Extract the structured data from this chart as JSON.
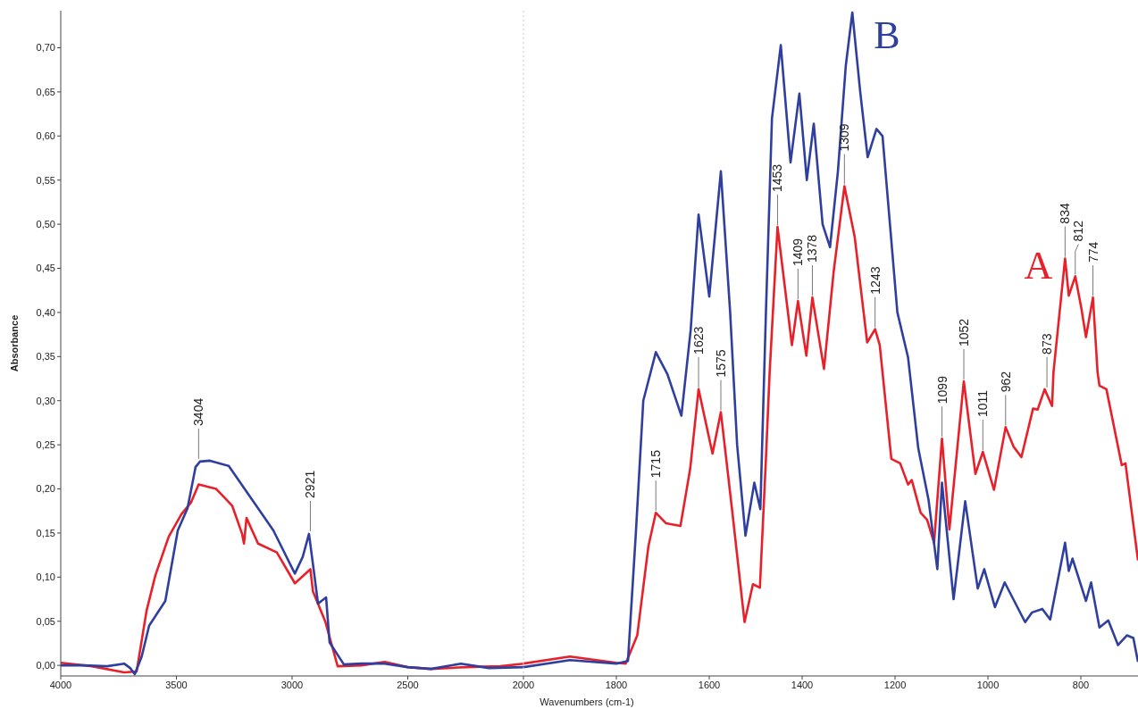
{
  "chart_data": [
    {
      "type": "line",
      "ylabel": "Absorbance",
      "tick_labels": "xy",
      "xlim": [
        4000,
        2000
      ],
      "xticks": [
        4000,
        3500,
        3000,
        2500,
        2000
      ],
      "ylim": [
        -0.012,
        0.742
      ],
      "yticks": [
        {
          "value": 0,
          "label": "0,00"
        },
        {
          "value": 0.05,
          "label": "0,05"
        },
        {
          "value": 0.1,
          "label": "0,10"
        },
        {
          "value": 0.15,
          "label": "0,15"
        },
        {
          "value": 0.2,
          "label": "0,20"
        },
        {
          "value": 0.25,
          "label": "0,25"
        },
        {
          "value": 0.3,
          "label": "0,30"
        },
        {
          "value": 0.35,
          "label": "0,35"
        },
        {
          "value": 0.4,
          "label": "0,40"
        },
        {
          "value": 0.45,
          "label": "0,45"
        },
        {
          "value": 0.5,
          "label": "0,50"
        },
        {
          "value": 0.55,
          "label": "0,55"
        },
        {
          "value": 0.6,
          "label": "0,60"
        },
        {
          "value": 0.65,
          "label": "0,65"
        },
        {
          "value": 0.7,
          "label": "0,70"
        }
      ],
      "series": [
        {
          "color": "#e8202a",
          "x": [
            4000,
            3865,
            3726,
            3672,
            3629,
            3591,
            3533,
            3479,
            3436,
            3404,
            3328,
            3259,
            3216,
            3208,
            3197,
            3147,
            3066,
            2988,
            2921,
            2910,
            2857,
            2803,
            2700,
            2600,
            2500,
            2400,
            2250,
            2100,
            2000
          ],
          "values": [
            0.003,
            -0.001,
            -0.008,
            -0.007,
            0.062,
            0.102,
            0.146,
            0.171,
            0.185,
            0.205,
            0.2,
            0.181,
            0.149,
            0.138,
            0.167,
            0.138,
            0.128,
            0.093,
            0.109,
            0.084,
            0.05,
            -0.001,
            0.0,
            0.004,
            -0.002,
            -0.004,
            -0.002,
            -0.001,
            0.002
          ]
        },
        {
          "color": "#2f3f9e",
          "x": [
            4000,
            3900,
            3800,
            3726,
            3700,
            3680,
            3650,
            3618,
            3548,
            3494,
            3452,
            3417,
            3398,
            3355,
            3274,
            3147,
            3081,
            2988,
            2954,
            2927,
            2907,
            2888,
            2853,
            2838,
            2776,
            2700,
            2600,
            2500,
            2400,
            2270,
            2150,
            2000
          ],
          "values": [
            0.0,
            0.0,
            -0.001,
            0.002,
            -0.003,
            -0.01,
            0.01,
            0.045,
            0.073,
            0.153,
            0.178,
            0.225,
            0.231,
            0.232,
            0.226,
            0.178,
            0.153,
            0.104,
            0.123,
            0.149,
            0.109,
            0.07,
            0.077,
            0.026,
            0.001,
            0.002,
            0.002,
            -0.002,
            -0.004,
            0.002,
            -0.003,
            -0.002
          ]
        }
      ],
      "annotations": [
        {
          "text": "3404",
          "x": 3404,
          "y": 0.232
        },
        {
          "text": "2921",
          "x": 2921,
          "y": 0.15
        }
      ]
    },
    {
      "type": "line",
      "xlabel": "Wavenumbers (cm-1)",
      "tick_labels": "x",
      "xlim": [
        2000,
        677
      ],
      "xticks": [
        1800,
        1600,
        1400,
        1200,
        1000,
        800
      ],
      "ylim": [
        -0.012,
        0.742
      ],
      "ref_lines": [
        {
          "axis": "x",
          "value": 2000,
          "color": "#c8c8c8",
          "line_style": "dotted"
        }
      ],
      "series": [
        {
          "name": "A",
          "color": "#e8202a",
          "x": [
            2000,
            1900,
            1800,
            1780,
            1755,
            1731,
            1715,
            1693,
            1662,
            1641,
            1623,
            1593,
            1575,
            1551,
            1524,
            1506,
            1491,
            1478,
            1470,
            1453,
            1422,
            1409,
            1391,
            1378,
            1353,
            1332,
            1309,
            1287,
            1260,
            1243,
            1233,
            1208,
            1189,
            1172,
            1164,
            1145,
            1131,
            1116,
            1099,
            1083,
            1052,
            1027,
            1011,
            987,
            962,
            945,
            928,
            903,
            893,
            878,
            862,
            859,
            834,
            826,
            812,
            799,
            789,
            774,
            764,
            760,
            745,
            712,
            704,
            677
          ],
          "values": [
            0.002,
            0.01,
            0.003,
            0.002,
            0.034,
            0.135,
            0.173,
            0.161,
            0.158,
            0.223,
            0.313,
            0.24,
            0.287,
            0.177,
            0.049,
            0.092,
            0.088,
            0.234,
            0.332,
            0.497,
            0.363,
            0.413,
            0.351,
            0.417,
            0.336,
            0.447,
            0.543,
            0.486,
            0.366,
            0.381,
            0.363,
            0.234,
            0.229,
            0.205,
            0.21,
            0.173,
            0.165,
            0.139,
            0.257,
            0.154,
            0.322,
            0.217,
            0.242,
            0.199,
            0.27,
            0.248,
            0.236,
            0.291,
            0.29,
            0.313,
            0.294,
            0.332,
            0.461,
            0.419,
            0.441,
            0.405,
            0.372,
            0.417,
            0.332,
            0.317,
            0.313,
            0.227,
            0.229,
            0.119
          ]
        },
        {
          "name": "B",
          "color": "#2f3f9e",
          "x": [
            2000,
            1900,
            1800,
            1775,
            1758,
            1742,
            1715,
            1690,
            1660,
            1640,
            1623,
            1600,
            1575,
            1555,
            1540,
            1522,
            1503,
            1490,
            1478,
            1465,
            1446,
            1425,
            1406,
            1390,
            1375,
            1356,
            1340,
            1323,
            1306,
            1292,
            1275,
            1259,
            1240,
            1227,
            1211,
            1195,
            1172,
            1150,
            1128,
            1109,
            1099,
            1074,
            1049,
            1022,
            1008,
            985,
            964,
            920,
            905,
            883,
            866,
            834,
            826,
            818,
            789,
            778,
            760,
            741,
            720,
            701,
            687,
            677
          ],
          "values": [
            -0.002,
            0.006,
            0.002,
            0.005,
            0.15,
            0.3,
            0.355,
            0.33,
            0.283,
            0.38,
            0.511,
            0.418,
            0.56,
            0.4,
            0.25,
            0.147,
            0.207,
            0.177,
            0.4,
            0.62,
            0.703,
            0.57,
            0.648,
            0.55,
            0.614,
            0.5,
            0.474,
            0.56,
            0.68,
            0.74,
            0.65,
            0.576,
            0.608,
            0.6,
            0.5,
            0.4,
            0.349,
            0.246,
            0.188,
            0.109,
            0.207,
            0.075,
            0.186,
            0.087,
            0.109,
            0.066,
            0.094,
            0.049,
            0.06,
            0.064,
            0.052,
            0.139,
            0.107,
            0.121,
            0.073,
            0.094,
            0.043,
            0.051,
            0.023,
            0.034,
            0.031,
            0.004
          ]
        }
      ],
      "annotations": [
        {
          "text": "1715",
          "x": 1715,
          "y": 0.173
        },
        {
          "text": "1623",
          "x": 1623,
          "y": 0.313
        },
        {
          "text": "1575",
          "x": 1575,
          "y": 0.287
        },
        {
          "text": "1453",
          "x": 1453,
          "y": 0.497
        },
        {
          "text": "1409",
          "x": 1409,
          "y": 0.413
        },
        {
          "text": "1378",
          "x": 1378,
          "y": 0.417
        },
        {
          "text": "1309",
          "x": 1309,
          "y": 0.543
        },
        {
          "text": "1243",
          "x": 1243,
          "y": 0.381
        },
        {
          "text": "1099",
          "x": 1099,
          "y": 0.257
        },
        {
          "text": "1052",
          "x": 1052,
          "y": 0.322
        },
        {
          "text": "1011",
          "x": 1011,
          "y": 0.242
        },
        {
          "text": "962",
          "x": 962,
          "y": 0.27
        },
        {
          "text": "873",
          "x": 873,
          "y": 0.313
        },
        {
          "text": "834",
          "x": 834,
          "y": 0.461
        },
        {
          "text": "812",
          "x": 812,
          "y": 0.441
        },
        {
          "text": "774",
          "x": 774,
          "y": 0.417
        }
      ]
    }
  ]
}
